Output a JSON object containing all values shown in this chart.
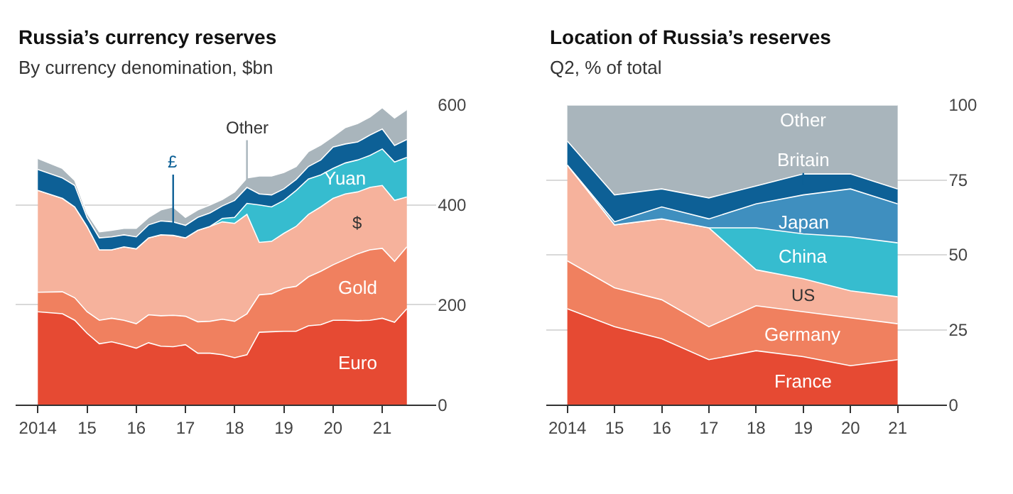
{
  "chart_data": [
    {
      "type": "area",
      "stacked": true,
      "title": "Russia’s currency reserves",
      "subtitle": "By currency denomination, $bn",
      "x": [
        2014,
        2014.5,
        2014.75,
        2015,
        2015.25,
        2015.5,
        2015.75,
        2016,
        2016.25,
        2016.5,
        2016.75,
        2017,
        2017.25,
        2017.5,
        2017.75,
        2018,
        2018.25,
        2018.5,
        2018.75,
        2019,
        2019.25,
        2019.5,
        2019.75,
        2020,
        2020.25,
        2020.5,
        2020.75,
        2021,
        2021.25,
        2021.5
      ],
      "series": [
        {
          "name": "Euro",
          "color": "#e64a33",
          "values": [
            186,
            182,
            169,
            143,
            122,
            126,
            120,
            113,
            124,
            117,
            116,
            120,
            103,
            103,
            100,
            94,
            100,
            145,
            146,
            147,
            147,
            158,
            160,
            169,
            169,
            168,
            169,
            173,
            165,
            192
          ]
        },
        {
          "name": "Gold",
          "color": "#f0805f",
          "values": [
            39,
            44,
            45,
            43,
            47,
            47,
            49,
            49,
            56,
            61,
            63,
            57,
            63,
            64,
            71,
            73,
            82,
            75,
            76,
            86,
            90,
            98,
            107,
            111,
            122,
            134,
            141,
            140,
            122,
            124
          ]
        },
        {
          "name": "$",
          "color": "#f6b29c",
          "values": [
            204,
            187,
            182,
            171,
            141,
            137,
            147,
            150,
            154,
            162,
            160,
            157,
            183,
            190,
            195,
            196,
            199,
            105,
            105,
            110,
            120,
            125,
            129,
            133,
            131,
            124,
            125,
            126,
            122,
            100
          ]
        },
        {
          "name": "Yuan",
          "color": "#36bccf",
          "values": [
            0,
            0,
            0,
            0,
            0,
            0,
            0,
            0,
            0,
            0,
            0,
            0,
            0,
            0,
            7,
            12,
            22,
            75,
            69,
            66,
            72,
            71,
            64,
            60,
            62,
            64,
            64,
            73,
            77,
            79
          ]
        },
        {
          "name": "£",
          "color": "#0d6096",
          "values": [
            42,
            41,
            43,
            18,
            24,
            26,
            24,
            24,
            26,
            28,
            27,
            25,
            26,
            27,
            25,
            34,
            32,
            22,
            24,
            23,
            22,
            25,
            30,
            43,
            38,
            36,
            41,
            40,
            33,
            36
          ]
        },
        {
          "name": "Other",
          "color": "#a9b5bc",
          "values": [
            22,
            19,
            10,
            8,
            12,
            13,
            13,
            17,
            15,
            22,
            30,
            16,
            15,
            16,
            13,
            17,
            19,
            36,
            38,
            33,
            26,
            30,
            30,
            21,
            33,
            37,
            36,
            43,
            55,
            60
          ]
        }
      ],
      "xlim": [
        2013.55,
        2022.1
      ],
      "xticks": [
        2014,
        {
          "value": 2015,
          "label": "15"
        },
        {
          "value": 2016,
          "label": "16"
        },
        {
          "value": 2017,
          "label": "17"
        },
        {
          "value": 2018,
          "label": "18"
        },
        {
          "value": 2019,
          "label": "19"
        },
        {
          "value": 2020,
          "label": "20"
        },
        {
          "value": 2021,
          "label": "21"
        }
      ],
      "ylim": [
        0,
        600
      ],
      "yticks": [
        0,
        200,
        400,
        600
      ],
      "grid": "y",
      "legend": false
    },
    {
      "type": "area",
      "stacked": true,
      "title": "Location of Russia’s reserves",
      "subtitle": "Q2, % of total",
      "x": [
        2014,
        2015,
        2016,
        2017,
        2018,
        2019,
        2020,
        2021
      ],
      "series": [
        {
          "name": "France",
          "color": "#e64a33",
          "values": [
            32,
            26,
            22,
            15,
            18,
            16,
            13,
            15
          ]
        },
        {
          "name": "Germany",
          "color": "#f0805f",
          "values": [
            16,
            13,
            13,
            11,
            15,
            15,
            16,
            12
          ]
        },
        {
          "name": "US",
          "color": "#f6b29c",
          "values": [
            32,
            21,
            27,
            33,
            12,
            11,
            9,
            9
          ]
        },
        {
          "name": "China",
          "color": "#36bccf",
          "values": [
            0,
            0,
            0,
            0,
            14,
            15,
            18,
            18
          ]
        },
        {
          "name": "Japan",
          "color": "#3f8fbf",
          "values": [
            0,
            1,
            4,
            3,
            8,
            13,
            16,
            13
          ]
        },
        {
          "name": "Britain",
          "color": "#0d6096",
          "values": [
            8,
            9,
            6,
            7,
            6,
            7,
            5,
            5
          ]
        },
        {
          "name": "Other",
          "color": "#a9b5bc",
          "values": [
            12,
            30,
            28,
            31,
            27,
            23,
            23,
            28
          ]
        }
      ],
      "xlim": [
        2013.56,
        2022.05
      ],
      "xticks": [
        2014,
        {
          "value": 2015,
          "label": "15"
        },
        {
          "value": 2016,
          "label": "16"
        },
        {
          "value": 2017,
          "label": "17"
        },
        {
          "value": 2018,
          "label": "18"
        },
        {
          "value": 2019,
          "label": "19"
        },
        {
          "value": 2020,
          "label": "20"
        },
        {
          "value": 2021,
          "label": "21"
        }
      ],
      "ylim": [
        0,
        100
      ],
      "yticks": [
        0,
        25,
        50,
        75,
        100
      ],
      "grid": "y",
      "legend": false
    }
  ]
}
